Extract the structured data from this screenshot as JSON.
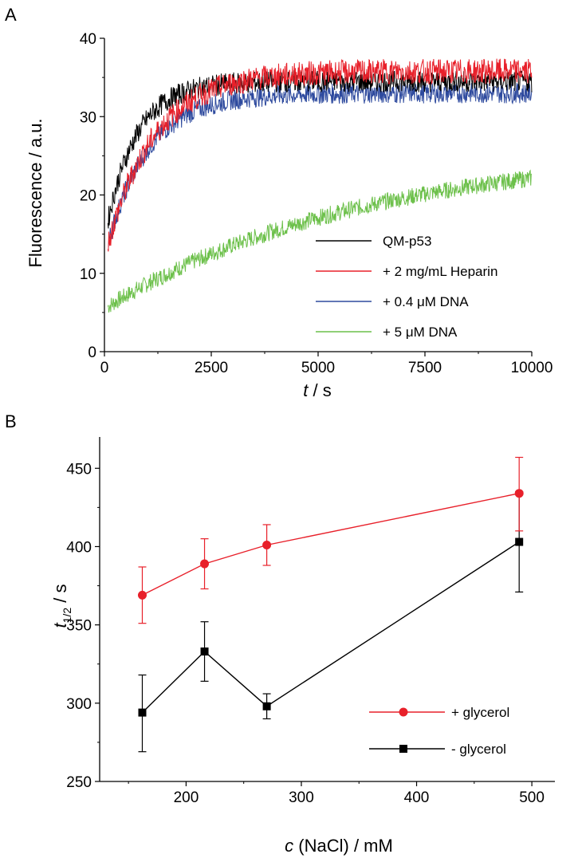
{
  "colors": {
    "black": "#000000",
    "red": "#e8202a",
    "blue": "#2e4a9e",
    "green": "#6cc04a"
  },
  "chart_data": [
    {
      "panel_label": "A",
      "type": "line",
      "xlabel_italic": "t",
      "xlabel_rest": " / s",
      "ylabel": "Fluorescence / a.u.",
      "xlim": [
        0,
        10000
      ],
      "ylim": [
        0,
        40
      ],
      "xticks": [
        0,
        2500,
        5000,
        7500,
        10000
      ],
      "yticks": [
        0,
        10,
        20,
        30,
        40
      ],
      "legend_position": "bottom-right",
      "series": [
        {
          "name": "QM-p53",
          "color": "#000000",
          "start": 14.5,
          "plateau": 34.5,
          "tau": 700,
          "noise": 1.4,
          "x_end": 10000,
          "points": [
            [
              0,
              14.5
            ],
            [
              500,
              26
            ],
            [
              1000,
              30
            ],
            [
              1500,
              32
            ],
            [
              2000,
              33
            ],
            [
              3000,
              33.5
            ],
            [
              5000,
              34
            ],
            [
              7500,
              34.5
            ],
            [
              10000,
              34.5
            ]
          ]
        },
        {
          "name": "+ 2 mg/mL Heparin",
          "color": "#e8202a",
          "start": 12,
          "plateau": 35.8,
          "tau": 1100,
          "noise": 1.6,
          "x_end": 10000,
          "points": [
            [
              0,
              12
            ],
            [
              500,
              21
            ],
            [
              1000,
              26
            ],
            [
              2000,
              31
            ],
            [
              3000,
              33.5
            ],
            [
              5000,
              35
            ],
            [
              7500,
              35.5
            ],
            [
              10000,
              35.8
            ]
          ]
        },
        {
          "name": "+ 0.4 μM DNA",
          "color": "#2e4a9e",
          "start": 12,
          "plateau": 33,
          "tau": 950,
          "noise": 1.3,
          "x_end": 10000,
          "points": [
            [
              0,
              12
            ],
            [
              500,
              21
            ],
            [
              1000,
              25.5
            ],
            [
              2000,
              29
            ],
            [
              3000,
              30.5
            ],
            [
              5000,
              32
            ],
            [
              7500,
              32.5
            ],
            [
              10000,
              33
            ]
          ]
        },
        {
          "name": "+ 5 μM DNA",
          "color": "#6cc04a",
          "start": 5.5,
          "plateau": 26,
          "tau": 6000,
          "noise": 1.1,
          "x_end": 10000,
          "points": [
            [
              0,
              5.5
            ],
            [
              1000,
              10
            ],
            [
              2500,
              14
            ],
            [
              5000,
              17.5
            ],
            [
              7500,
              20
            ],
            [
              10000,
              22
            ]
          ]
        }
      ]
    },
    {
      "panel_label": "B",
      "type": "line",
      "ylabel_main": "t",
      "ylabel_sub": "1/2",
      "ylabel_rest": " / s",
      "xlabel_italic": "c",
      "xlabel_rest": " (NaCl) / mM",
      "xlim": [
        125,
        520
      ],
      "ylim": [
        250,
        470
      ],
      "xticks": [
        200,
        300,
        400,
        500
      ],
      "xminor": [
        150,
        250,
        350,
        450
      ],
      "yticks": [
        250,
        300,
        350,
        400,
        450
      ],
      "legend_position": "bottom-right",
      "series": [
        {
          "name": "+ glycerol",
          "color": "#e8202a",
          "marker": "circle",
          "x": [
            162,
            216,
            270,
            489
          ],
          "y": [
            369,
            389,
            401,
            434
          ],
          "err_low": [
            18,
            16,
            13,
            24
          ],
          "err_high": [
            18,
            16,
            13,
            23
          ]
        },
        {
          "name": "- glycerol",
          "color": "#000000",
          "marker": "square",
          "x": [
            162,
            216,
            270,
            489
          ],
          "y": [
            294,
            333,
            298,
            403
          ],
          "err_low": [
            25,
            19,
            8,
            32
          ],
          "err_high": [
            24,
            19,
            8,
            32
          ]
        }
      ]
    }
  ]
}
